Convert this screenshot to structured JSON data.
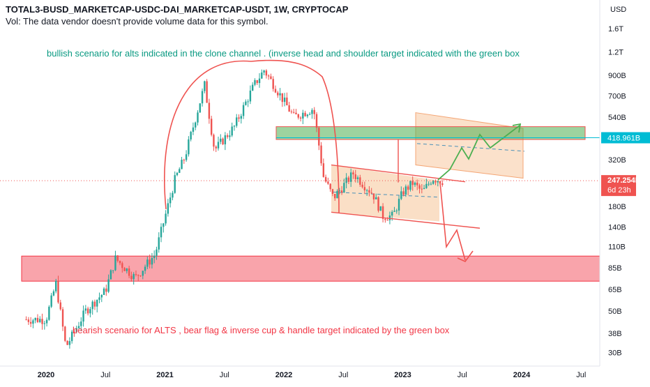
{
  "header": {
    "symbol_line": "TOTAL3-BUSD_MARKETCAP-USDC-DAI_MARKETCAP-USDT, 1W, CRYPTOCAP",
    "vol_note": "Vol: The data vendor doesn't provide volume data for this symbol."
  },
  "annotations": {
    "bullish_text": "bullish scenario for alts indicated in the clone channel . (inverse head and shoulder target indicated with the green box",
    "bearish_text": "bearish scenario for ALTS , bear flag & inverse cup & handle target indicated by the green box"
  },
  "price_badges": {
    "level": "418.961B",
    "last_price": "247.254B",
    "countdown": "6d 23h"
  },
  "colors": {
    "up": "#26a69a",
    "down": "#ef5350",
    "bullish_text": "#089981",
    "bearish_text": "#f23645",
    "target_box": "#4caf50",
    "support_box": "#f23645",
    "channel_fill": "#f7c9a0"
  },
  "chart_data": {
    "type": "candlestick",
    "scale": "log",
    "currency": "USD",
    "y_ticks": [
      "1.6T",
      "1.2T",
      "900B",
      "700B",
      "540B",
      "420B",
      "320B",
      "240B",
      "180B",
      "140B",
      "110B",
      "85B",
      "65B",
      "50B",
      "38B",
      "30B"
    ],
    "x_ticks": [
      "2020",
      "Jul",
      "2021",
      "Jul",
      "2022",
      "Jul",
      "2023",
      "Jul",
      "2024",
      "Jul"
    ],
    "close_anchors": [
      {
        "date": "2019-11",
        "close": 45
      },
      {
        "date": "2020-01",
        "close": 45
      },
      {
        "date": "2020-02",
        "close": 70
      },
      {
        "date": "2020-03",
        "close": 32
      },
      {
        "date": "2020-05",
        "close": 50
      },
      {
        "date": "2020-07",
        "close": 64
      },
      {
        "date": "2020-08",
        "close": 95
      },
      {
        "date": "2020-10",
        "close": 75
      },
      {
        "date": "2020-12",
        "close": 100
      },
      {
        "date": "2021-02",
        "close": 250
      },
      {
        "date": "2021-03",
        "close": 330
      },
      {
        "date": "2021-05",
        "close": 800
      },
      {
        "date": "2021-06",
        "close": 360
      },
      {
        "date": "2021-08",
        "close": 480
      },
      {
        "date": "2021-09",
        "close": 620
      },
      {
        "date": "2021-10",
        "close": 800
      },
      {
        "date": "2021-11",
        "close": 960
      },
      {
        "date": "2021-12",
        "close": 800
      },
      {
        "date": "2022-02",
        "close": 540
      },
      {
        "date": "2022-04",
        "close": 600
      },
      {
        "date": "2022-05",
        "close": 260
      },
      {
        "date": "2022-06",
        "close": 200
      },
      {
        "date": "2022-08",
        "close": 270
      },
      {
        "date": "2022-10",
        "close": 210
      },
      {
        "date": "2022-11",
        "close": 160
      },
      {
        "date": "2022-12",
        "close": 160
      },
      {
        "date": "2023-01",
        "close": 215
      },
      {
        "date": "2023-02",
        "close": 240
      },
      {
        "date": "2023-03",
        "close": 215
      },
      {
        "date": "2023-04",
        "close": 255
      },
      {
        "date": "2023-05",
        "close": 247
      }
    ],
    "drawings": {
      "target_box": {
        "from": "2021-12",
        "to": "2023-12",
        "low": 410,
        "high": 480
      },
      "support_box": {
        "from": "2019-10",
        "to": "2024-08",
        "low": 72,
        "high": 98
      },
      "channel": [
        {
          "x": "2022-05",
          "y": 295
        },
        {
          "x": "2023-05",
          "y": 250
        },
        {
          "x": "2022-05",
          "y": 165
        },
        {
          "x": "2023-06",
          "y": 140
        }
      ],
      "bullish_path": [
        {
          "x": "2023-04",
          "y": 247
        },
        {
          "x": "2023-05",
          "y": 260
        },
        {
          "x": "2023-06",
          "y": 340
        },
        {
          "x": "2023-07",
          "y": 280
        },
        {
          "x": "2023-08",
          "y": 420
        },
        {
          "x": "2023-09",
          "y": 350
        },
        {
          "x": "2023-11",
          "y": 420
        },
        {
          "x": "2023-12",
          "y": 480
        }
      ],
      "bearish_path": [
        {
          "x": "2023-05",
          "y": 230
        },
        {
          "x": "2023-06",
          "y": 100
        },
        {
          "x": "2023-07",
          "y": 140
        },
        {
          "x": "2023-08",
          "y": 85
        },
        {
          "x": "2023-08",
          "y": 100
        }
      ],
      "target_level": 418.961,
      "last_price": 247.254
    }
  }
}
